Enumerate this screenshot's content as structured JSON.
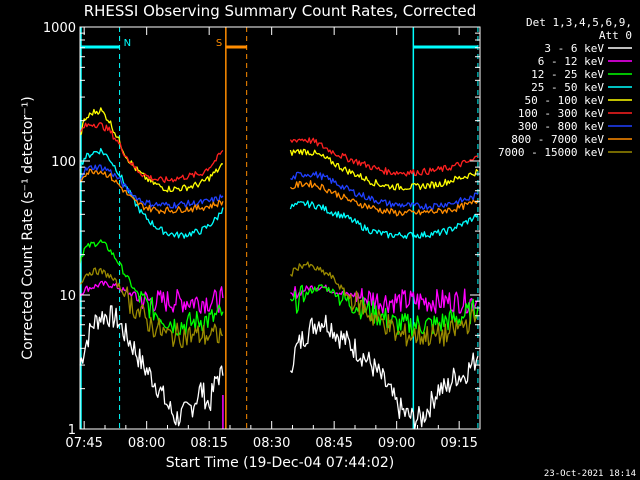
{
  "chart_data": {
    "type": "line",
    "title": "RHESSI Observing Summary Count Rates, Corrected",
    "xlabel": "Start Time (19-Dec-04 07:44:02)",
    "ylabel": "Corrected Count Rate (s⁻¹ detector⁻¹)",
    "y_scale": "log",
    "ylim": [
      1,
      1000
    ],
    "xlim_minutes": [
      -1,
      95
    ],
    "x_ticks": [
      {
        "label": "07:45",
        "minute": 0
      },
      {
        "label": "08:00",
        "minute": 15
      },
      {
        "label": "08:15",
        "minute": 30
      },
      {
        "label": "08:30",
        "minute": 45
      },
      {
        "label": "08:45",
        "minute": 60
      },
      {
        "label": "09:00",
        "minute": 75
      },
      {
        "label": "09:15",
        "minute": 90
      }
    ],
    "y_ticks": [
      {
        "label": "1000",
        "value": 1000
      },
      {
        "label": "100",
        "value": 100
      },
      {
        "label": "10",
        "value": 10
      },
      {
        "label": "1",
        "value": 1
      }
    ],
    "legend_header": [
      "Det 1,3,4,5,6,9,",
      "Att 0"
    ],
    "legend_position": "right",
    "markers": [
      {
        "label": "N",
        "color": "#00ffff",
        "bar_start": -1,
        "bar_end": 8.5,
        "dashed_at": 8.5
      },
      {
        "label": "S",
        "color": "#ff8c00",
        "bar_start": 34,
        "bar_end": 39,
        "solid_at": 34,
        "dashed_at": 39
      },
      {
        "label": "",
        "color": "#00ffff",
        "bar_start": 79,
        "bar_end": 94.5,
        "solid_at": 79,
        "dashed_at": 94.5
      }
    ],
    "magenta_line": 33.3,
    "gap_minutes": [
      34,
      49.5
    ],
    "series": [
      {
        "name": "3 - 6 keV",
        "color": "#ffffff",
        "x": [
          -1,
          0,
          2,
          4,
          6,
          8,
          10,
          12,
          14,
          16,
          18,
          20,
          22,
          24,
          26,
          28,
          30,
          32,
          33.3,
          49.5,
          51,
          53,
          55,
          57,
          59,
          61,
          63,
          65,
          67,
          69,
          71,
          73,
          75,
          77,
          79,
          81,
          83,
          85,
          87,
          89,
          91,
          93,
          94.5
        ],
        "y": [
          3,
          4,
          6,
          7,
          7,
          6.5,
          5,
          4,
          3,
          2.5,
          2,
          1.5,
          1.2,
          1.3,
          1.5,
          2,
          1.5,
          2.5,
          2.5,
          3,
          4,
          5,
          6,
          6.5,
          6,
          5,
          4.5,
          4,
          3.5,
          3,
          2.5,
          2,
          1.5,
          1.3,
          1.2,
          1.2,
          1.5,
          2,
          2,
          2.5,
          2.5,
          3,
          3.5
        ]
      },
      {
        "name": "6 - 12 keV",
        "color": "#ff00ff",
        "x": [
          -1,
          0,
          2,
          4,
          6,
          8,
          10,
          12,
          14,
          16,
          18,
          20,
          22,
          24,
          26,
          28,
          30,
          32,
          33.3,
          49.5,
          51,
          53,
          55,
          57,
          59,
          61,
          63,
          65,
          67,
          69,
          71,
          73,
          75,
          77,
          79,
          81,
          83,
          85,
          87,
          89,
          91,
          93,
          94.5
        ],
        "y": [
          10,
          11,
          11.5,
          12,
          12,
          11.5,
          10.5,
          10,
          9.3,
          9,
          9,
          9,
          9,
          9,
          9,
          9,
          9,
          9,
          9.5,
          9,
          10,
          11,
          11.5,
          11.5,
          11,
          10.5,
          10,
          10,
          9.5,
          9.5,
          9,
          9,
          9,
          9,
          9,
          9,
          9,
          9,
          9,
          9,
          9,
          9,
          9
        ]
      },
      {
        "name": "12 - 25 keV",
        "color": "#00ff00",
        "x": [
          -1,
          0,
          2,
          4,
          6,
          8,
          10,
          12,
          14,
          16,
          18,
          20,
          22,
          24,
          26,
          28,
          30,
          32,
          33.3,
          49.5,
          51,
          53,
          55,
          57,
          59,
          61,
          63,
          65,
          67,
          69,
          71,
          73,
          75,
          77,
          79,
          81,
          83,
          85,
          87,
          89,
          91,
          93,
          94.5
        ],
        "y": [
          18,
          22,
          24,
          25,
          22,
          18,
          14,
          11,
          9,
          8,
          7,
          6.5,
          6,
          6,
          6.2,
          6.5,
          6.5,
          7,
          7.5,
          8,
          9,
          10,
          11,
          11.5,
          11,
          10,
          9,
          8.5,
          8,
          7.5,
          7,
          6.5,
          6,
          6,
          6,
          6,
          6,
          6,
          6.5,
          6.5,
          7,
          7.5,
          8
        ]
      },
      {
        "name": "25 - 50 keV",
        "color": "#00ffff",
        "x": [
          -1,
          0,
          2,
          4,
          6,
          8,
          10,
          12,
          14,
          16,
          18,
          20,
          22,
          24,
          26,
          28,
          30,
          32,
          33.3,
          49.5,
          51,
          53,
          55,
          57,
          59,
          61,
          63,
          65,
          67,
          69,
          71,
          73,
          75,
          77,
          79,
          81,
          83,
          85,
          87,
          89,
          91,
          93,
          94.5
        ],
        "y": [
          90,
          105,
          115,
          120,
          105,
          85,
          65,
          50,
          40,
          35,
          31,
          29,
          28,
          28,
          29,
          30,
          33,
          38,
          45,
          45,
          47,
          48,
          47,
          45,
          42,
          40,
          38,
          35,
          32,
          30,
          29,
          28,
          28,
          28,
          28,
          28,
          28.5,
          29,
          30,
          32,
          34,
          37,
          40
        ]
      },
      {
        "name": "50 - 100 keV",
        "color": "#ffff00",
        "x": [
          -1,
          0,
          2,
          4,
          6,
          8,
          10,
          12,
          14,
          16,
          18,
          20,
          22,
          24,
          26,
          28,
          30,
          32,
          33.3,
          49.5,
          51,
          53,
          55,
          57,
          59,
          61,
          63,
          65,
          67,
          69,
          71,
          73,
          75,
          77,
          79,
          81,
          83,
          85,
          87,
          89,
          91,
          93,
          94.5
        ],
        "y": [
          150,
          200,
          230,
          240,
          200,
          150,
          110,
          90,
          78,
          70,
          65,
          62,
          62,
          63,
          65,
          68,
          75,
          85,
          95,
          115,
          118,
          118,
          115,
          108,
          100,
          92,
          85,
          80,
          75,
          70,
          67,
          65,
          64,
          64,
          64,
          65,
          66,
          67,
          70,
          73,
          76,
          80,
          84
        ]
      },
      {
        "name": "100 - 300 keV",
        "color": "#ff2020",
        "x": [
          -1,
          0,
          2,
          4,
          6,
          8,
          10,
          12,
          14,
          16,
          18,
          20,
          22,
          24,
          26,
          28,
          30,
          32,
          33.3,
          49.5,
          51,
          53,
          55,
          57,
          59,
          61,
          63,
          65,
          67,
          69,
          71,
          73,
          75,
          77,
          79,
          81,
          83,
          85,
          87,
          89,
          91,
          93,
          94.5
        ],
        "y": [
          160,
          180,
          190,
          185,
          170,
          140,
          110,
          90,
          80,
          75,
          72,
          72,
          74,
          76,
          78,
          80,
          90,
          105,
          120,
          140,
          145,
          145,
          140,
          130,
          120,
          112,
          105,
          100,
          95,
          90,
          86,
          83,
          82,
          82,
          82,
          83,
          84,
          86,
          88,
          92,
          96,
          100,
          108
        ]
      },
      {
        "name": "300 - 800 keV",
        "color": "#2040ff",
        "x": [
          -1,
          0,
          2,
          4,
          6,
          8,
          10,
          12,
          14,
          16,
          18,
          20,
          22,
          24,
          26,
          28,
          30,
          32,
          33.3,
          49.5,
          51,
          53,
          55,
          57,
          59,
          61,
          63,
          65,
          67,
          69,
          71,
          73,
          75,
          77,
          79,
          81,
          83,
          85,
          87,
          89,
          91,
          93,
          94.5
        ],
        "y": [
          75,
          85,
          90,
          90,
          85,
          75,
          63,
          55,
          50,
          48,
          47,
          47,
          47,
          48,
          48,
          49,
          50,
          52,
          55,
          72,
          78,
          80,
          80,
          77,
          72,
          67,
          62,
          58,
          55,
          52,
          50,
          48,
          47,
          47,
          46,
          46,
          46,
          47,
          48,
          49,
          51,
          53,
          56
        ]
      },
      {
        "name": "800 - 7000 keV",
        "color": "#ff8c00",
        "x": [
          -1,
          0,
          2,
          4,
          6,
          8,
          10,
          12,
          14,
          16,
          18,
          20,
          22,
          24,
          26,
          28,
          30,
          32,
          33.3,
          49.5,
          51,
          53,
          55,
          57,
          59,
          61,
          63,
          65,
          67,
          69,
          71,
          73,
          75,
          77,
          79,
          81,
          83,
          85,
          87,
          89,
          91,
          93,
          94.5
        ],
        "y": [
          70,
          80,
          85,
          84,
          78,
          68,
          58,
          50,
          46,
          44,
          43,
          43,
          43,
          44,
          44,
          45,
          46,
          48,
          50,
          62,
          66,
          68,
          67,
          64,
          60,
          56,
          52,
          49,
          47,
          45,
          43,
          42,
          41,
          41,
          41,
          41,
          42,
          42,
          43,
          44,
          46,
          48,
          51
        ]
      },
      {
        "name": "7000 - 15000 keV",
        "color": "#9a8a00",
        "x": [
          -1,
          0,
          2,
          4,
          6,
          8,
          10,
          12,
          14,
          16,
          18,
          20,
          22,
          24,
          26,
          28,
          30,
          32,
          33.3,
          49.5,
          51,
          53,
          55,
          57,
          59,
          61,
          63,
          65,
          67,
          69,
          71,
          73,
          75,
          77,
          79,
          81,
          83,
          85,
          87,
          89,
          91,
          93,
          94.5
        ],
        "y": [
          12,
          14,
          15,
          15,
          14,
          12,
          10,
          8,
          7,
          6,
          5.5,
          5,
          5,
          5,
          5,
          5,
          5,
          5,
          5,
          14,
          16,
          17,
          16,
          15,
          14,
          12,
          10,
          9,
          8,
          7,
          6.5,
          6,
          5,
          5,
          5,
          5,
          5,
          5,
          5,
          5.5,
          6,
          6.5,
          7
        ]
      }
    ]
  },
  "footer": {
    "timestamp": "23-Oct-2021 18:14"
  }
}
